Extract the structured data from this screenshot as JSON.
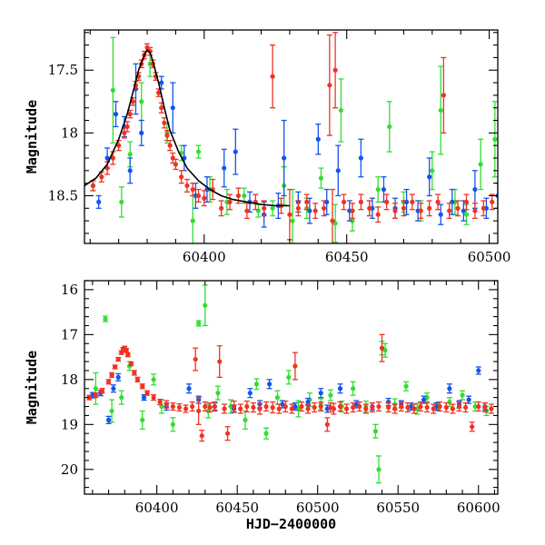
{
  "colors": {
    "green": "#33dd33",
    "blue": "#1155ee",
    "red": "#ee3322",
    "fit": "#000000"
  },
  "chart_data": [
    {
      "type": "scatter",
      "panel": "top",
      "xlabel": "",
      "ylabel": "Magnitude",
      "xlim": [
        60358,
        60503
      ],
      "ylim": [
        18.88,
        17.18
      ],
      "y_inverted": true,
      "xticks": [
        60400,
        60450,
        60500
      ],
      "yticks": [
        17.5,
        18,
        18.5
      ],
      "x_minor_step": 10,
      "y_minor_step": 0.1,
      "grid": false,
      "series": [
        {
          "color_key": "green",
          "x": [
            60361,
            60368,
            60371,
            60374,
            60378,
            60381,
            60387,
            60392,
            60396,
            60398,
            60402,
            60408,
            60414,
            60419,
            60424,
            60428,
            60431,
            60436,
            60441,
            60446,
            60448,
            60452,
            60458,
            60461,
            60465,
            60470,
            60476,
            60480,
            60483,
            60488,
            60492,
            60497,
            60502
          ],
          "y": [
            18.42,
            17.66,
            18.55,
            18.17,
            17.75,
            17.45,
            18.0,
            18.16,
            18.7,
            18.15,
            18.45,
            18.55,
            18.5,
            18.62,
            18.6,
            18.42,
            18.7,
            18.6,
            18.36,
            18.72,
            17.82,
            18.7,
            18.6,
            18.45,
            17.95,
            18.55,
            18.62,
            18.3,
            17.82,
            18.55,
            18.65,
            18.25,
            18.05
          ],
          "err": [
            0.04,
            0.42,
            0.12,
            0.1,
            0.15,
            0.1,
            0.08,
            0.06,
            0.2,
            0.05,
            0.1,
            0.1,
            0.06,
            0.05,
            0.06,
            0.15,
            0.25,
            0.08,
            0.08,
            0.15,
            0.25,
            0.08,
            0.06,
            0.1,
            0.2,
            0.08,
            0.08,
            0.15,
            0.35,
            0.1,
            0.08,
            0.2,
            0.3
          ]
        },
        {
          "color_key": "blue",
          "x": [
            60363,
            60366,
            60369,
            60372,
            60374,
            60376,
            60378,
            60385,
            60389,
            60393,
            60397,
            60401,
            60407,
            60411,
            60416,
            60421,
            60426,
            60428,
            60433,
            60437,
            60440,
            60443,
            60447,
            60451,
            60455,
            60459,
            60463,
            60467,
            60471,
            60475,
            60479,
            60483,
            60487,
            60491,
            60495,
            60499,
            60503
          ],
          "y": [
            18.55,
            18.2,
            17.85,
            17.95,
            18.3,
            17.65,
            18.0,
            17.6,
            17.8,
            18.2,
            18.5,
            18.45,
            18.28,
            18.15,
            18.55,
            18.65,
            18.58,
            18.2,
            18.55,
            18.62,
            18.05,
            18.55,
            18.3,
            18.62,
            18.2,
            18.6,
            18.45,
            18.6,
            18.55,
            18.62,
            18.35,
            18.65,
            18.55,
            18.62,
            18.45,
            18.6,
            18.5
          ],
          "err": [
            0.05,
            0.08,
            0.1,
            0.08,
            0.1,
            0.2,
            0.1,
            0.05,
            0.2,
            0.1,
            0.1,
            0.1,
            0.15,
            0.18,
            0.08,
            0.1,
            0.1,
            0.3,
            0.08,
            0.1,
            0.12,
            0.1,
            0.2,
            0.08,
            0.15,
            0.08,
            0.1,
            0.08,
            0.1,
            0.08,
            0.15,
            0.08,
            0.1,
            0.08,
            0.15,
            0.08,
            0.1
          ]
        },
        {
          "color_key": "red",
          "x": [
            60361,
            60364,
            60366,
            60368,
            60370,
            60372,
            60373,
            60374,
            60375,
            60376,
            60377,
            60378,
            60379,
            60380,
            60381,
            60382,
            60383,
            60384,
            60385,
            60386,
            60387,
            60388,
            60389,
            60390,
            60392,
            60394,
            60396,
            60398,
            60400,
            60403,
            60406,
            60409,
            60412,
            60415,
            60418,
            60421,
            60424,
            60427,
            60430,
            60433,
            60436,
            60439,
            60442,
            60444,
            60445,
            60446,
            60449,
            60452,
            60455,
            60458,
            60461,
            60464,
            60467,
            60470,
            60473,
            60476,
            60479,
            60482,
            60484,
            60486,
            60489,
            60492,
            60495,
            60498,
            60501
          ],
          "y": [
            18.42,
            18.35,
            18.28,
            18.2,
            18.1,
            18.0,
            17.95,
            17.85,
            17.75,
            17.62,
            17.55,
            17.45,
            17.38,
            17.32,
            17.35,
            17.45,
            17.55,
            17.68,
            17.8,
            17.92,
            18.02,
            18.1,
            18.2,
            18.25,
            18.35,
            18.42,
            18.45,
            18.5,
            18.52,
            18.45,
            18.6,
            18.55,
            18.5,
            18.62,
            18.55,
            18.6,
            17.55,
            18.58,
            18.65,
            18.6,
            18.55,
            18.62,
            18.6,
            17.62,
            18.7,
            17.5,
            18.55,
            18.62,
            18.55,
            18.6,
            18.65,
            18.55,
            18.62,
            18.6,
            18.55,
            18.62,
            18.6,
            18.55,
            17.7,
            18.62,
            18.6,
            18.55,
            18.62,
            18.6,
            18.55
          ],
          "err": [
            0.04,
            0.04,
            0.05,
            0.05,
            0.04,
            0.04,
            0.04,
            0.03,
            0.03,
            0.03,
            0.03,
            0.03,
            0.03,
            0.03,
            0.03,
            0.03,
            0.03,
            0.03,
            0.04,
            0.04,
            0.04,
            0.04,
            0.04,
            0.04,
            0.05,
            0.05,
            0.05,
            0.05,
            0.06,
            0.08,
            0.06,
            0.06,
            0.06,
            0.06,
            0.06,
            0.06,
            0.25,
            0.06,
            0.2,
            0.06,
            0.06,
            0.06,
            0.06,
            0.4,
            0.25,
            0.3,
            0.06,
            0.06,
            0.06,
            0.06,
            0.06,
            0.06,
            0.06,
            0.06,
            0.06,
            0.06,
            0.06,
            0.06,
            0.3,
            0.06,
            0.06,
            0.06,
            0.06,
            0.06,
            0.06
          ]
        }
      ],
      "fit_curve": {
        "x": [
          60358,
          60362,
          60366,
          60370,
          60373,
          60375,
          60377,
          60379,
          60380,
          60381,
          60382,
          60384,
          60386,
          60388,
          60391,
          60394,
          60398,
          60402,
          60406,
          60410,
          60415,
          60420,
          60425,
          60430
        ],
        "y": [
          18.42,
          18.36,
          18.25,
          18.05,
          17.85,
          17.68,
          17.5,
          17.38,
          17.34,
          17.36,
          17.43,
          17.6,
          17.8,
          17.98,
          18.15,
          18.28,
          18.38,
          18.45,
          18.5,
          18.53,
          18.55,
          18.57,
          18.58,
          18.58
        ]
      }
    },
    {
      "type": "scatter",
      "panel": "bottom",
      "xlabel": "HJD−2400000",
      "ylabel": "Magnitude",
      "xlim": [
        60355,
        60612
      ],
      "ylim": [
        20.55,
        15.8
      ],
      "y_inverted": true,
      "xticks": [
        60400,
        60450,
        60500,
        60550,
        60600
      ],
      "yticks": [
        16,
        17,
        18,
        19,
        20
      ],
      "x_minor_step": 10,
      "y_minor_step": 0.2,
      "grid": false,
      "series": [
        {
          "color_key": "green",
          "x": [
            60362,
            60368,
            60372,
            60378,
            60383,
            60391,
            60398,
            60403,
            60410,
            60426,
            60430,
            60432,
            60438,
            60446,
            60455,
            60462,
            60468,
            60475,
            60482,
            60488,
            60495,
            60502,
            60508,
            60515,
            60522,
            60530,
            60536,
            60538,
            60540,
            60542,
            60548,
            60555,
            60562,
            60568,
            60575,
            60582,
            60590,
            60598,
            60605
          ],
          "y": [
            18.2,
            16.65,
            18.7,
            18.4,
            17.7,
            18.9,
            18.0,
            18.6,
            19.0,
            16.75,
            16.35,
            18.7,
            18.3,
            18.6,
            18.9,
            18.1,
            19.2,
            18.4,
            17.95,
            18.65,
            18.45,
            18.55,
            18.35,
            18.6,
            18.2,
            18.6,
            19.15,
            20.0,
            17.3,
            17.35,
            18.55,
            18.15,
            18.65,
            18.4,
            18.6,
            18.5,
            18.35,
            18.6,
            18.7
          ],
          "err": [
            0.35,
            0.06,
            0.25,
            0.15,
            0.1,
            0.2,
            0.12,
            0.15,
            0.15,
            0.06,
            0.45,
            0.15,
            0.15,
            0.15,
            0.2,
            0.12,
            0.12,
            0.15,
            0.15,
            0.18,
            0.15,
            0.12,
            0.12,
            0.12,
            0.15,
            0.12,
            0.15,
            0.3,
            0.15,
            0.15,
            0.12,
            0.1,
            0.12,
            0.1,
            0.1,
            0.1,
            0.1,
            0.1,
            0.1
          ]
        },
        {
          "color_key": "blue",
          "x": [
            60360,
            60365,
            60370,
            60373,
            60376,
            60392,
            60406,
            60420,
            60426,
            60436,
            60448,
            60458,
            60464,
            60470,
            60478,
            60486,
            60494,
            60502,
            60506,
            60514,
            60524,
            60534,
            60544,
            60552,
            60558,
            60566,
            60574,
            60582,
            60588,
            60594,
            60600,
            60604
          ],
          "y": [
            18.35,
            18.3,
            18.9,
            18.2,
            17.95,
            18.4,
            18.6,
            18.2,
            18.45,
            18.6,
            18.65,
            18.3,
            18.55,
            18.1,
            18.55,
            18.6,
            18.5,
            18.3,
            18.65,
            18.2,
            18.55,
            18.6,
            18.5,
            18.55,
            18.6,
            18.45,
            18.6,
            18.2,
            18.55,
            18.45,
            17.8,
            18.6
          ],
          "err": [
            0.06,
            0.06,
            0.08,
            0.08,
            0.08,
            0.06,
            0.08,
            0.1,
            0.08,
            0.08,
            0.08,
            0.1,
            0.08,
            0.1,
            0.08,
            0.08,
            0.08,
            0.1,
            0.08,
            0.1,
            0.08,
            0.08,
            0.08,
            0.08,
            0.08,
            0.08,
            0.08,
            0.1,
            0.08,
            0.08,
            0.08,
            0.08
          ]
        },
        {
          "color_key": "red",
          "x": [
            60358,
            60362,
            60366,
            60370,
            60372,
            60374,
            60376,
            60378,
            60379,
            60380,
            60381,
            60382,
            60384,
            60386,
            60388,
            60391,
            60394,
            60398,
            60402,
            60406,
            60410,
            60414,
            60418,
            60422,
            60424,
            60426,
            60428,
            60430,
            60433,
            60436,
            60439,
            60442,
            60444,
            60448,
            60452,
            60456,
            60460,
            60464,
            60468,
            60472,
            60476,
            60480,
            60484,
            60486,
            60490,
            60494,
            60498,
            60502,
            60506,
            60508,
            60510,
            60514,
            60518,
            60522,
            60526,
            60530,
            60534,
            60538,
            60540,
            60544,
            60548,
            60552,
            60556,
            60560,
            60564,
            60568,
            60572,
            60576,
            60580,
            60584,
            60588,
            60592,
            60596,
            60600,
            60604,
            60608
          ],
          "y": [
            18.4,
            18.35,
            18.25,
            18.05,
            17.9,
            17.72,
            17.55,
            17.4,
            17.33,
            17.3,
            17.35,
            17.45,
            17.65,
            17.85,
            18.0,
            18.15,
            18.3,
            18.4,
            18.5,
            18.55,
            18.6,
            18.62,
            18.65,
            18.6,
            17.55,
            18.7,
            19.25,
            18.6,
            18.62,
            18.6,
            17.6,
            18.65,
            19.2,
            18.6,
            18.65,
            18.6,
            18.62,
            18.65,
            18.6,
            18.62,
            18.65,
            18.6,
            18.65,
            17.7,
            18.6,
            18.65,
            18.62,
            18.6,
            19.0,
            18.62,
            18.65,
            18.6,
            18.65,
            18.62,
            18.6,
            18.65,
            18.62,
            18.6,
            17.3,
            18.62,
            18.65,
            18.6,
            18.62,
            18.65,
            18.6,
            18.62,
            18.65,
            18.6,
            18.62,
            18.65,
            18.6,
            18.62,
            19.05,
            18.6,
            18.62,
            18.65
          ],
          "err": [
            0.05,
            0.05,
            0.05,
            0.05,
            0.05,
            0.04,
            0.04,
            0.04,
            0.04,
            0.04,
            0.04,
            0.04,
            0.04,
            0.05,
            0.05,
            0.05,
            0.05,
            0.06,
            0.06,
            0.08,
            0.08,
            0.08,
            0.08,
            0.1,
            0.25,
            0.3,
            0.12,
            0.1,
            0.1,
            0.1,
            0.35,
            0.1,
            0.15,
            0.12,
            0.1,
            0.12,
            0.1,
            0.12,
            0.1,
            0.12,
            0.1,
            0.12,
            0.1,
            0.3,
            0.1,
            0.1,
            0.1,
            0.1,
            0.15,
            0.1,
            0.12,
            0.1,
            0.1,
            0.1,
            0.1,
            0.1,
            0.1,
            0.1,
            0.3,
            0.1,
            0.1,
            0.1,
            0.1,
            0.1,
            0.1,
            0.1,
            0.1,
            0.1,
            0.1,
            0.1,
            0.1,
            0.1,
            0.1,
            0.1,
            0.1,
            0.1
          ]
        }
      ]
    }
  ]
}
